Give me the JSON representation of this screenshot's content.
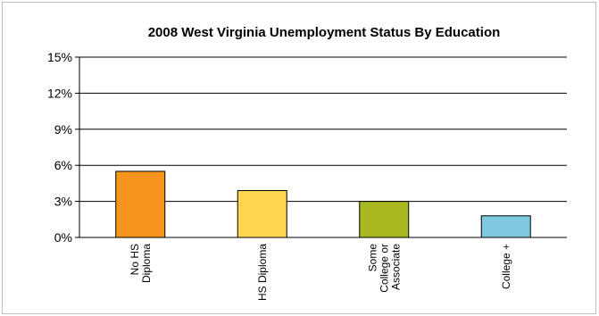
{
  "chart_data": {
    "type": "bar",
    "title": "2008 West Virginia Unemployment Status By Education",
    "xlabel": "",
    "ylabel": "",
    "categories": [
      "No HS Diploma",
      "HS Diploma",
      "Some College or Associate",
      "College +"
    ],
    "category_lines": [
      [
        "No HS",
        "Diploma"
      ],
      [
        "HS Diploma"
      ],
      [
        "Some",
        "College or",
        "Associate"
      ],
      [
        "College +"
      ]
    ],
    "values": [
      5.5,
      3.9,
      3.0,
      1.8
    ],
    "colors": [
      "#f7941d",
      "#ffd54f",
      "#a8b820",
      "#7ec8e0"
    ],
    "ylim": [
      0,
      15
    ],
    "yticks": [
      0,
      3,
      6,
      9,
      12,
      15
    ],
    "ytick_labels": [
      "0%",
      "3%",
      "6%",
      "9%",
      "12%",
      "15%"
    ],
    "grid": true,
    "legend": "none"
  }
}
